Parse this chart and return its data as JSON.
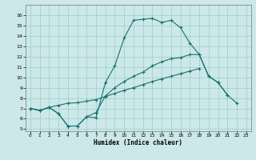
{
  "xlabel": "Humidex (Indice chaleur)",
  "xlim": [
    -0.5,
    23.5
  ],
  "ylim": [
    4.8,
    17.0
  ],
  "yticks": [
    5,
    6,
    7,
    8,
    9,
    10,
    11,
    12,
    13,
    14,
    15,
    16
  ],
  "xticks": [
    0,
    1,
    2,
    3,
    4,
    5,
    6,
    7,
    8,
    9,
    10,
    11,
    12,
    13,
    14,
    15,
    16,
    17,
    18,
    19,
    20,
    21,
    22,
    23
  ],
  "background_color": "#cce8e8",
  "grid_color": "#99cccc",
  "line_color": "#1a7070",
  "line1_y": [
    7.0,
    6.8,
    7.1,
    6.5,
    5.3,
    5.3,
    6.2,
    6.1,
    9.5,
    11.1,
    13.8,
    15.5,
    15.6,
    15.7,
    15.3,
    15.5,
    14.8,
    13.3,
    12.2,
    10.1,
    9.5,
    8.3,
    null,
    null
  ],
  "line2_y": [
    7.0,
    6.8,
    7.1,
    7.3,
    7.5,
    7.55,
    7.7,
    7.85,
    8.15,
    8.45,
    8.75,
    9.0,
    9.3,
    9.6,
    9.85,
    10.1,
    10.35,
    10.6,
    10.85,
    null,
    null,
    null,
    null,
    null
  ],
  "line3_y": [
    7.0,
    6.8,
    7.1,
    6.5,
    5.3,
    5.3,
    6.2,
    6.6,
    8.2,
    9.0,
    9.6,
    10.1,
    10.5,
    11.1,
    11.5,
    11.8,
    11.9,
    12.2,
    12.2,
    10.1,
    9.5,
    8.3,
    7.5,
    null
  ]
}
